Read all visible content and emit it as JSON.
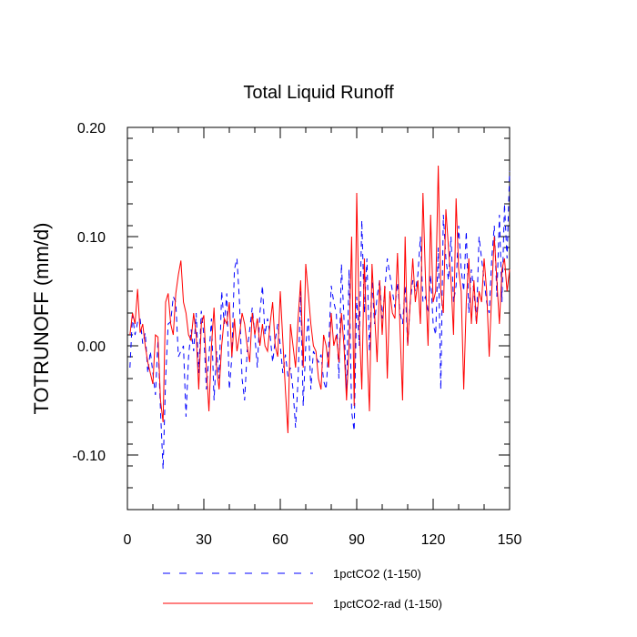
{
  "chart_data": {
    "type": "line",
    "title": "Total Liquid Runoff",
    "xlabel": "",
    "ylabel": "TOTRUNOFF  (mm/d)",
    "xlim": [
      0,
      150
    ],
    "ylim": [
      -0.15,
      0.2
    ],
    "x_ticks": [
      0,
      30,
      60,
      90,
      120,
      150
    ],
    "x_tick_labels": [
      "0",
      "30",
      "60",
      "90",
      "120",
      "150"
    ],
    "y_ticks": [
      -0.1,
      0.0,
      0.1,
      0.2
    ],
    "y_tick_labels": [
      "-0.10",
      "0.00",
      "0.10",
      "0.20"
    ],
    "grid": false,
    "legend_position": "bottom",
    "series": [
      {
        "name": "1pctCO2 (1-150)",
        "color": "#0000ff",
        "dash": "dashed",
        "x_start": 1,
        "values": [
          -0.02,
          0.028,
          0.01,
          0.022,
          0.025,
          0.002,
          0.012,
          -0.025,
          -0.005,
          -0.025,
          -0.045,
          0.005,
          -0.06,
          -0.113,
          -0.03,
          0.02,
          0.022,
          0.045,
          0.04,
          -0.01,
          -0.005,
          0.0,
          -0.065,
          -0.01,
          0.015,
          -0.005,
          0.03,
          -0.025,
          0.032,
          0.01,
          -0.04,
          -0.01,
          0.025,
          -0.05,
          -0.005,
          -0.03,
          0.05,
          0.02,
          0.048,
          -0.04,
          -0.01,
          0.07,
          0.08,
          0.04,
          -0.03,
          -0.05,
          -0.005,
          0.015,
          0.035,
          0.01,
          -0.02,
          0.03,
          0.055,
          0.01,
          0.025,
          0.01,
          -0.015,
          0.005,
          0.02,
          0.0,
          -0.025,
          -0.008,
          -0.028,
          -0.02,
          -0.04,
          -0.075,
          -0.03,
          0.05,
          -0.055,
          0.0,
          0.025,
          -0.04,
          -0.005,
          -0.01,
          -0.015,
          -0.008,
          -0.032,
          -0.04,
          0.0,
          0.055,
          0.04,
          0.03,
          -0.03,
          0.075,
          0.025,
          -0.045,
          0.07,
          -0.06,
          -0.078,
          0.045,
          0.0,
          0.115,
          0.03,
          0.08,
          -0.005,
          0.06,
          0.02,
          0.045,
          0.06,
          0.025,
          0.05,
          0.08,
          0.065,
          0.05,
          0.035,
          0.058,
          0.03,
          0.02,
          0.055,
          0.0,
          0.04,
          0.06,
          0.05,
          0.065,
          0.1,
          0.04,
          0.045,
          0.03,
          0.065,
          0.02,
          0.01,
          0.09,
          -0.04,
          0.12,
          0.08,
          0.06,
          0.1,
          0.04,
          0.055,
          0.11,
          0.07,
          0.05,
          0.105,
          0.03,
          0.07,
          0.05,
          0.02,
          0.1,
          0.08,
          0.06,
          0.04,
          0.03,
          0.08,
          0.11,
          0.045,
          0.12,
          0.04,
          0.13,
          0.08,
          0.16
        ]
      },
      {
        "name": "1pctCO2-rad (1-150)",
        "color": "#ff0000",
        "dash": "solid",
        "x_start": 1,
        "values": [
          0.01,
          0.03,
          0.02,
          0.052,
          0.012,
          0.02,
          0.0,
          -0.015,
          -0.025,
          -0.035,
          0.01,
          0.008,
          -0.05,
          -0.07,
          0.04,
          0.048,
          0.02,
          0.01,
          0.048,
          0.065,
          0.078,
          0.04,
          0.03,
          0.01,
          0.005,
          0.03,
          0.01,
          -0.04,
          0.02,
          0.028,
          -0.02,
          -0.06,
          0.0,
          0.035,
          -0.02,
          -0.04,
          0.0,
          0.025,
          0.02,
          0.04,
          -0.01,
          0.025,
          -0.005,
          0.01,
          0.03,
          0.02,
          0.0,
          -0.015,
          0.03,
          0.01,
          0.025,
          0.0,
          0.02,
          0.0,
          -0.005,
          0.02,
          0.04,
          0.0,
          -0.01,
          0.05,
          0.005,
          -0.04,
          -0.08,
          0.02,
          0.0,
          -0.02,
          0.025,
          0.06,
          -0.02,
          0.075,
          0.048,
          0.02,
          0.0,
          -0.005,
          -0.03,
          -0.04,
          0.01,
          0.0,
          -0.02,
          0.03,
          0.0,
          0.01,
          -0.015,
          0.03,
          0.0,
          -0.05,
          0.0,
          0.1,
          -0.055,
          0.14,
          0.02,
          -0.04,
          0.08,
          0.0,
          -0.06,
          0.075,
          0.03,
          -0.015,
          0.06,
          0.01,
          0.055,
          -0.03,
          0.05,
          0.03,
          0.025,
          0.085,
          0.015,
          -0.05,
          0.1,
          0.0,
          0.04,
          0.08,
          0.04,
          0.06,
          0.02,
          0.14,
          0.06,
          0.0,
          0.12,
          0.04,
          0.05,
          0.165,
          0.05,
          0.03,
          0.125,
          0.09,
          0.06,
          0.01,
          0.135,
          0.07,
          0.05,
          -0.04,
          0.04,
          0.08,
          0.02,
          0.06,
          0.02,
          0.05,
          0.04,
          0.08,
          0.05,
          -0.01,
          0.05,
          0.1,
          0.06,
          0.02,
          0.07,
          0.08,
          0.05,
          0.07
        ]
      }
    ]
  }
}
